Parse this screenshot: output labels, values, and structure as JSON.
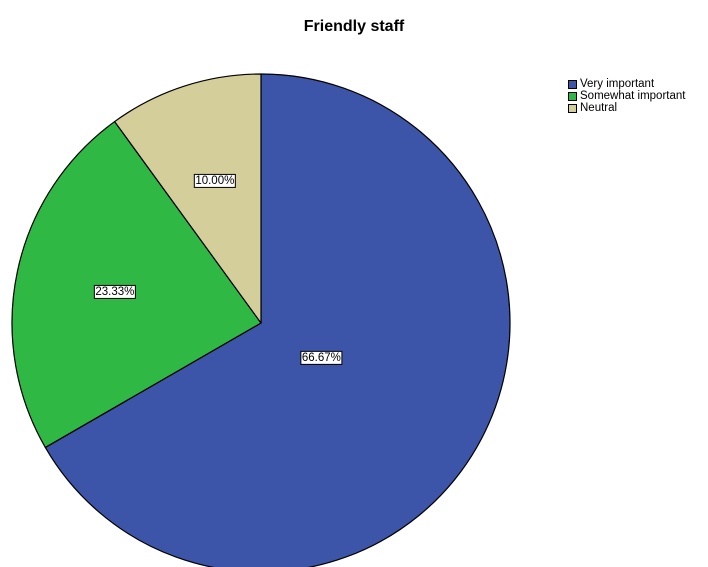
{
  "chart_data": {
    "type": "pie",
    "title": "Friendly staff",
    "legend_position": "top-right",
    "start_angle": "12 o'clock, clockwise",
    "slices": [
      {
        "name": "Very important",
        "value": 66.67,
        "label": "66.67%",
        "color": "#3d55a8"
      },
      {
        "name": "Somewhat important",
        "value": 23.33,
        "label": "23.33%",
        "color": "#2fb844"
      },
      {
        "name": "Neutral",
        "value": 10.0,
        "label": "10.00%",
        "color": "#d4cf9a"
      }
    ]
  }
}
